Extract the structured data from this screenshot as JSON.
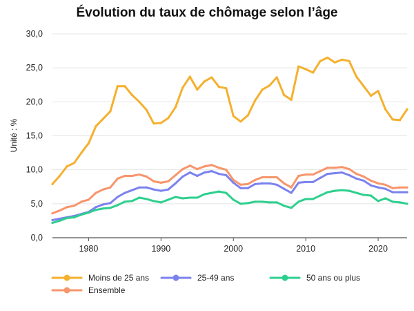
{
  "chart_data": {
    "type": "line",
    "title": "Évolution du taux de chômage selon l’âge",
    "xlabel": "",
    "ylabel": "Unité : %",
    "xlim": [
      1975,
      2024
    ],
    "ylim": [
      0,
      30
    ],
    "x_ticks": [
      1980,
      1990,
      2000,
      2010,
      2020
    ],
    "y_ticks": [
      "0,0",
      "5,0",
      "10,0",
      "15,0",
      "20,0",
      "25,0",
      "30,0"
    ],
    "grid": "horizontal",
    "legend": "bottom",
    "x": [
      1975,
      1976,
      1977,
      1978,
      1979,
      1980,
      1981,
      1982,
      1983,
      1984,
      1985,
      1986,
      1987,
      1988,
      1989,
      1990,
      1991,
      1992,
      1993,
      1994,
      1995,
      1996,
      1997,
      1998,
      1999,
      2000,
      2001,
      2002,
      2003,
      2004,
      2005,
      2006,
      2007,
      2008,
      2009,
      2010,
      2011,
      2012,
      2013,
      2014,
      2015,
      2016,
      2017,
      2018,
      2019,
      2020,
      2021,
      2022,
      2023,
      2024
    ],
    "series": [
      {
        "name": "Moins de 25 ans",
        "color": "#f5b02e",
        "values": [
          7.9,
          9.1,
          10.5,
          11.0,
          12.5,
          13.9,
          16.4,
          17.5,
          18.6,
          22.3,
          22.3,
          21.0,
          20.0,
          18.8,
          16.8,
          16.9,
          17.6,
          19.2,
          22.1,
          23.7,
          21.8,
          23.0,
          23.6,
          22.2,
          22.0,
          17.9,
          17.1,
          18.0,
          20.2,
          21.8,
          22.4,
          23.6,
          21.0,
          20.3,
          25.2,
          24.8,
          24.3,
          26.0,
          26.5,
          25.8,
          26.2,
          26.0,
          23.7,
          22.3,
          20.9,
          21.6,
          18.9,
          17.4,
          17.3,
          18.9
        ]
      },
      {
        "name": "25-49 ans",
        "color": "#7b82ee",
        "values": [
          2.6,
          2.8,
          3.0,
          3.2,
          3.5,
          3.8,
          4.5,
          4.9,
          5.1,
          6.0,
          6.6,
          7.0,
          7.4,
          7.4,
          7.1,
          6.9,
          7.1,
          8.0,
          9.0,
          9.6,
          9.1,
          9.6,
          9.8,
          9.4,
          9.2,
          8.1,
          7.3,
          7.3,
          7.9,
          8.0,
          8.0,
          7.8,
          7.2,
          6.6,
          8.1,
          8.2,
          8.2,
          8.8,
          9.4,
          9.5,
          9.6,
          9.2,
          8.7,
          8.4,
          7.7,
          7.4,
          7.2,
          6.7,
          6.7,
          6.7
        ]
      },
      {
        "name": "50 ans ou plus",
        "color": "#2ecf8e",
        "values": [
          2.2,
          2.5,
          2.9,
          3.0,
          3.4,
          3.7,
          4.1,
          4.3,
          4.4,
          4.8,
          5.3,
          5.4,
          5.9,
          5.7,
          5.4,
          5.2,
          5.6,
          6.0,
          5.8,
          5.9,
          5.9,
          6.4,
          6.6,
          6.8,
          6.6,
          5.6,
          5.0,
          5.1,
          5.3,
          5.3,
          5.2,
          5.2,
          4.7,
          4.4,
          5.3,
          5.7,
          5.7,
          6.2,
          6.7,
          6.9,
          7.0,
          6.9,
          6.6,
          6.3,
          6.2,
          5.4,
          5.8,
          5.3,
          5.2,
          5.0
        ]
      },
      {
        "name": "Ensemble",
        "color": "#f7956b",
        "values": [
          3.6,
          4.0,
          4.5,
          4.7,
          5.3,
          5.6,
          6.6,
          7.1,
          7.4,
          8.7,
          9.1,
          9.1,
          9.3,
          9.0,
          8.3,
          8.1,
          8.3,
          9.2,
          10.1,
          10.6,
          10.1,
          10.5,
          10.7,
          10.3,
          10.0,
          8.5,
          7.8,
          7.9,
          8.5,
          8.9,
          8.9,
          8.9,
          8.0,
          7.4,
          9.1,
          9.3,
          9.3,
          9.8,
          10.3,
          10.3,
          10.4,
          10.1,
          9.4,
          9.0,
          8.4,
          8.0,
          7.8,
          7.3,
          7.4,
          7.4
        ]
      }
    ]
  }
}
